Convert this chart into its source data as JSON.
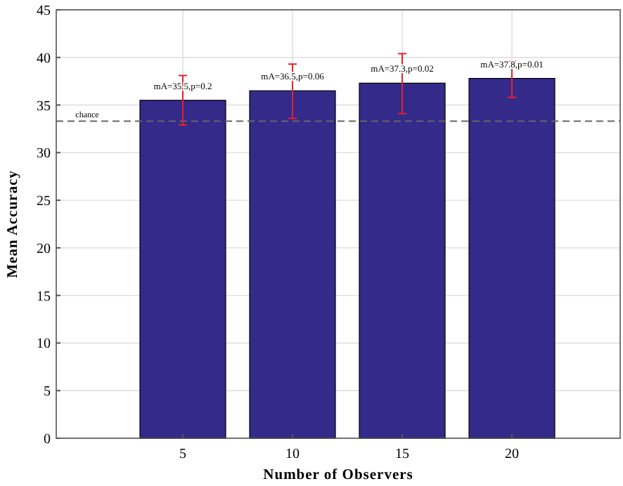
{
  "chart_data": {
    "type": "bar",
    "xlabel": "Number of Observers",
    "ylabel": "Mean Accuracy",
    "categories": [
      "5",
      "10",
      "15",
      "20"
    ],
    "values": [
      35.5,
      36.5,
      37.3,
      37.8
    ],
    "color": "#342a8a",
    "errors": [
      [
        32.9,
        38.1
      ],
      [
        33.6,
        39.3
      ],
      [
        34.1,
        40.4
      ],
      [
        35.8,
        39.6
      ]
    ],
    "value_labels": [
      "mA=35.5,p=0.2",
      "mA=36.5,p=0.06",
      "mA=37.3,p=0.02",
      "mA=37.8,p=0.01"
    ],
    "ylim": [
      0,
      45
    ],
    "yticks": [
      0,
      5,
      10,
      15,
      20,
      25,
      30,
      35,
      40,
      45
    ],
    "grid": true,
    "ref_lines": [
      {
        "axis": "y",
        "value": 33.3,
        "label": "chance",
        "color": "#666666",
        "line_style": "dashed"
      }
    ]
  }
}
